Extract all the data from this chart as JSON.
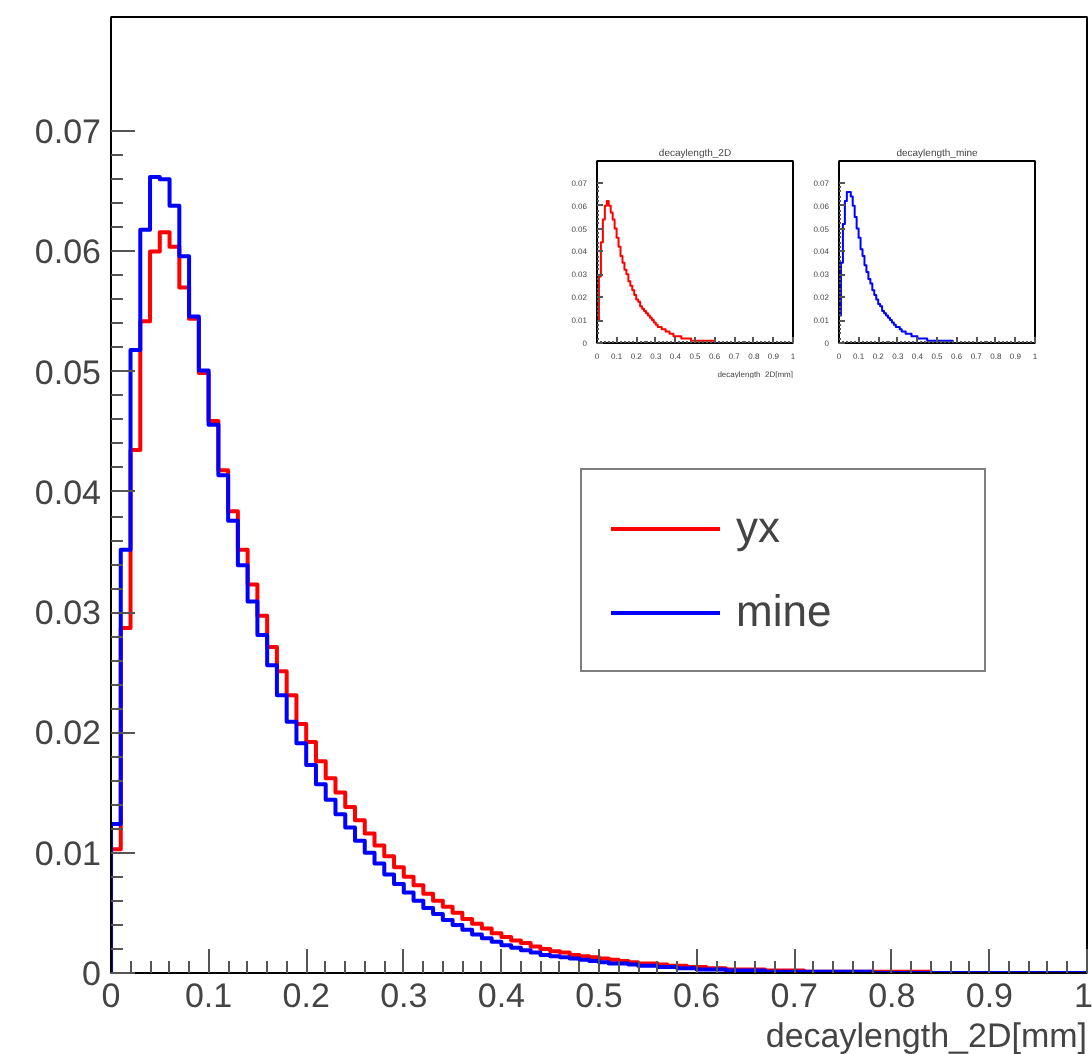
{
  "chart_data": [
    {
      "type": "histogram",
      "xlabel": "decaylength_2D[mm]",
      "bins": [
        0,
        0.01,
        0.02,
        0.03,
        0.04,
        0.05,
        0.06,
        0.07,
        0.08,
        0.09,
        0.1,
        0.11,
        0.12,
        0.13,
        0.14,
        0.15,
        0.16,
        0.17,
        0.18,
        0.19,
        0.2,
        0.21,
        0.22,
        0.23,
        0.24,
        0.25,
        0.26,
        0.27,
        0.28,
        0.29,
        0.3,
        0.31,
        0.32,
        0.33,
        0.34,
        0.35,
        0.36,
        0.37,
        0.38,
        0.39,
        0.4,
        0.41,
        0.42,
        0.43,
        0.44,
        0.45,
        0.46,
        0.47,
        0.48,
        0.49,
        0.5,
        0.51,
        0.52,
        0.53,
        0.54,
        0.55,
        0.56,
        0.57,
        0.58,
        0.59,
        0.6,
        0.61,
        0.62,
        0.63,
        0.64,
        0.65,
        0.66,
        0.67,
        0.68,
        0.69,
        0.7,
        0.71,
        0.72,
        0.73,
        0.74,
        0.75,
        0.76,
        0.77,
        0.78,
        0.79,
        0.8,
        0.81,
        0.82,
        0.83,
        0.84,
        0.85,
        0.86,
        0.87,
        0.88,
        0.89,
        0.9,
        0.91,
        0.92,
        0.93,
        0.94,
        0.95,
        0.96,
        0.97,
        0.98,
        0.99,
        1
      ],
      "series": [
        {
          "name": "yx",
          "color": "#ff0000",
          "values": [
            0.0103,
            0.0287,
            0.0435,
            0.0542,
            0.06,
            0.0616,
            0.0604,
            0.057,
            0.0544,
            0.0499,
            0.0459,
            0.0418,
            0.0384,
            0.0352,
            0.0323,
            0.0297,
            0.0271,
            0.0251,
            0.0231,
            0.0207,
            0.0192,
            0.0176,
            0.0162,
            0.015,
            0.0138,
            0.0127,
            0.0116,
            0.0106,
            0.0097,
            0.0088,
            0.008,
            0.0073,
            0.0066,
            0.006,
            0.0055,
            0.005,
            0.0045,
            0.0041,
            0.0037,
            0.0033,
            0.003,
            0.0027,
            0.0025,
            0.0022,
            0.002,
            0.0018,
            0.0017,
            0.0015,
            0.0014,
            0.0013,
            0.0012,
            0.0011,
            0.001,
            0.0009,
            0.0008,
            0.0008,
            0.0007,
            0.0006,
            0.0006,
            0.0005,
            0.0005,
            0.0004,
            0.0004,
            0.0003,
            0.0003,
            0.0003,
            0.0003,
            0.0002,
            0.0002,
            0.0002,
            0.0002,
            0.0001,
            0.0001,
            0.0001,
            0.0001,
            0.0001,
            0.0001,
            0.0001,
            0.0001,
            0.0001,
            0.0001,
            0.0001,
            0.0001,
            0.0001,
            0,
            0,
            0,
            0,
            0,
            0,
            0,
            0,
            0,
            0,
            0,
            0,
            0,
            0,
            0,
            0
          ]
        },
        {
          "name": "mine",
          "color": "#0000ff",
          "values": [
            0.0124,
            0.0352,
            0.0518,
            0.0618,
            0.0662,
            0.066,
            0.0638,
            0.0596,
            0.0546,
            0.0501,
            0.0456,
            0.0414,
            0.0376,
            0.0339,
            0.0309,
            0.0281,
            0.0256,
            0.0231,
            0.0209,
            0.0191,
            0.0173,
            0.0157,
            0.0144,
            0.0132,
            0.0121,
            0.011,
            0.01,
            0.0091,
            0.0082,
            0.0074,
            0.0067,
            0.006,
            0.0054,
            0.0049,
            0.0044,
            0.004,
            0.0036,
            0.0032,
            0.0029,
            0.0026,
            0.0023,
            0.0021,
            0.0019,
            0.0017,
            0.0015,
            0.0014,
            0.0013,
            0.0012,
            0.0011,
            0.001,
            0.0009,
            0.0008,
            0.0008,
            0.0007,
            0.0006,
            0.0006,
            0.0005,
            0.0005,
            0.0004,
            0.0004,
            0.0003,
            0.0003,
            0.0003,
            0.0002,
            0.0002,
            0.0002,
            0.0002,
            0.0001,
            0.0001,
            0.0001,
            0.0001,
            0.0001,
            0.0001,
            0.0001,
            0.0001,
            0.0001,
            0.0001,
            0.0001,
            0,
            0,
            0,
            0,
            0,
            0,
            0,
            0,
            0,
            0,
            0,
            0,
            0,
            0,
            0,
            0,
            0,
            0,
            0,
            0,
            0,
            0
          ]
        }
      ],
      "xlim": [
        0,
        1
      ],
      "ylim": [
        0,
        0.0795
      ],
      "xticks": [
        0,
        0.1,
        0.2,
        0.3,
        0.4,
        0.5,
        0.6,
        0.7,
        0.8,
        0.9,
        1
      ],
      "yticks": [
        0,
        0.01,
        0.02,
        0.03,
        0.04,
        0.05,
        0.06,
        0.07
      ],
      "legend": "right",
      "grid": false
    },
    {
      "type": "histogram",
      "title": "decaylength_2D",
      "xlabel": "decaylength_2D[mm]",
      "bins": [
        0,
        0.01,
        0.02,
        0.03,
        0.04,
        0.05,
        0.06,
        0.07,
        0.08,
        0.09,
        0.1,
        0.11,
        0.12,
        0.13,
        0.14,
        0.15,
        0.16,
        0.17,
        0.18,
        0.19,
        0.2,
        0.21,
        0.22,
        0.23,
        0.24,
        0.25,
        0.26,
        0.27,
        0.28,
        0.29,
        0.3,
        0.31,
        0.32,
        0.33,
        0.34,
        0.35,
        0.36,
        0.37,
        0.38,
        0.39,
        0.4,
        0.41,
        0.42,
        0.43,
        0.44,
        0.45,
        0.46,
        0.47,
        0.48,
        0.49,
        0.5,
        0.51,
        0.52,
        0.53,
        0.54,
        0.55,
        0.56,
        0.57,
        0.58,
        0.59,
        0.6,
        0.61,
        0.62,
        0.63,
        0.64,
        0.65,
        0.66,
        0.67,
        0.68,
        0.69,
        0.7,
        0.71,
        0.72,
        0.73,
        0.74,
        0.75,
        0.76,
        0.77,
        0.78,
        0.79,
        0.8,
        0.81,
        0.82,
        0.83,
        0.84,
        0.85,
        0.86,
        0.87,
        0.88,
        0.89,
        0.9,
        0.91,
        0.92,
        0.93,
        0.94,
        0.95,
        0.96,
        0.97,
        0.98,
        0.99,
        1
      ],
      "series": [
        {
          "color": "#ff0000",
          "values": [
            0.01,
            0.029,
            0.044,
            0.054,
            0.06,
            0.062,
            0.06,
            0.057,
            0.054,
            0.05,
            0.046,
            0.042,
            0.038,
            0.035,
            0.032,
            0.03,
            0.027,
            0.025,
            0.023,
            0.021,
            0.019,
            0.018,
            0.016,
            0.015,
            0.014,
            0.013,
            0.012,
            0.011,
            0.01,
            0.009,
            0.008,
            0.007,
            0.007,
            0.006,
            0.006,
            0.005,
            0.005,
            0.004,
            0.004,
            0.003,
            0.003,
            0.003,
            0.003,
            0.002,
            0.002,
            0.002,
            0.002,
            0.002,
            0.001,
            0.001,
            0.001,
            0.001,
            0.001,
            0.001,
            0.001,
            0.001,
            0.001,
            0.001,
            0.001,
            0.001,
            0,
            0,
            0,
            0,
            0,
            0,
            0,
            0,
            0,
            0,
            0,
            0,
            0,
            0,
            0,
            0,
            0,
            0,
            0,
            0,
            0,
            0,
            0,
            0,
            0,
            0,
            0,
            0,
            0,
            0,
            0,
            0,
            0,
            0,
            0,
            0,
            0,
            0,
            0,
            0
          ]
        }
      ],
      "xlim": [
        0,
        1
      ],
      "ylim": [
        0,
        0.0795
      ],
      "xticks": [
        0,
        0.1,
        0.2,
        0.3,
        0.4,
        0.5,
        0.6,
        0.7,
        0.8,
        0.9,
        1
      ],
      "yticks": [
        0,
        0.01,
        0.02,
        0.03,
        0.04,
        0.05,
        0.06,
        0.07
      ],
      "grid": false
    },
    {
      "type": "histogram",
      "title": "decaylength_mine",
      "bins": [
        0,
        0.01,
        0.02,
        0.03,
        0.04,
        0.05,
        0.06,
        0.07,
        0.08,
        0.09,
        0.1,
        0.11,
        0.12,
        0.13,
        0.14,
        0.15,
        0.16,
        0.17,
        0.18,
        0.19,
        0.2,
        0.21,
        0.22,
        0.23,
        0.24,
        0.25,
        0.26,
        0.27,
        0.28,
        0.29,
        0.3,
        0.31,
        0.32,
        0.33,
        0.34,
        0.35,
        0.36,
        0.37,
        0.38,
        0.39,
        0.4,
        0.41,
        0.42,
        0.43,
        0.44,
        0.45,
        0.46,
        0.47,
        0.48,
        0.49,
        0.5,
        0.51,
        0.52,
        0.53,
        0.54,
        0.55,
        0.56,
        0.57,
        0.58,
        0.59,
        0.6,
        0.61,
        0.62,
        0.63,
        0.64,
        0.65,
        0.66,
        0.67,
        0.68,
        0.69,
        0.7,
        0.71,
        0.72,
        0.73,
        0.74,
        0.75,
        0.76,
        0.77,
        0.78,
        0.79,
        0.8,
        0.81,
        0.82,
        0.83,
        0.84,
        0.85,
        0.86,
        0.87,
        0.88,
        0.89,
        0.9,
        0.91,
        0.92,
        0.93,
        0.94,
        0.95,
        0.96,
        0.97,
        0.98,
        0.99,
        1
      ],
      "series": [
        {
          "color": "#0000ff",
          "values": [
            0.012,
            0.035,
            0.052,
            0.062,
            0.066,
            0.066,
            0.064,
            0.06,
            0.055,
            0.05,
            0.046,
            0.041,
            0.038,
            0.034,
            0.031,
            0.028,
            0.026,
            0.023,
            0.021,
            0.019,
            0.017,
            0.016,
            0.014,
            0.013,
            0.012,
            0.011,
            0.01,
            0.009,
            0.008,
            0.007,
            0.007,
            0.006,
            0.005,
            0.005,
            0.004,
            0.004,
            0.004,
            0.003,
            0.003,
            0.003,
            0.002,
            0.002,
            0.002,
            0.002,
            0.002,
            0.001,
            0.001,
            0.001,
            0.001,
            0.001,
            0.001,
            0.001,
            0.001,
            0.001,
            0.001,
            0.001,
            0.001,
            0.001,
            0,
            0,
            0,
            0,
            0,
            0,
            0,
            0,
            0,
            0,
            0,
            0,
            0,
            0,
            0,
            0,
            0,
            0,
            0,
            0,
            0,
            0,
            0,
            0,
            0,
            0,
            0,
            0,
            0,
            0,
            0,
            0,
            0,
            0,
            0,
            0,
            0,
            0,
            0,
            0,
            0,
            0
          ]
        }
      ],
      "xlim": [
        0,
        1
      ],
      "ylim": [
        0,
        0.0795
      ],
      "xticks": [
        0,
        0.1,
        0.2,
        0.3,
        0.4,
        0.5,
        0.6,
        0.7,
        0.8,
        0.9,
        1
      ],
      "yticks": [
        0,
        0.01,
        0.02,
        0.03,
        0.04,
        0.05,
        0.06,
        0.07
      ],
      "grid": false
    }
  ]
}
